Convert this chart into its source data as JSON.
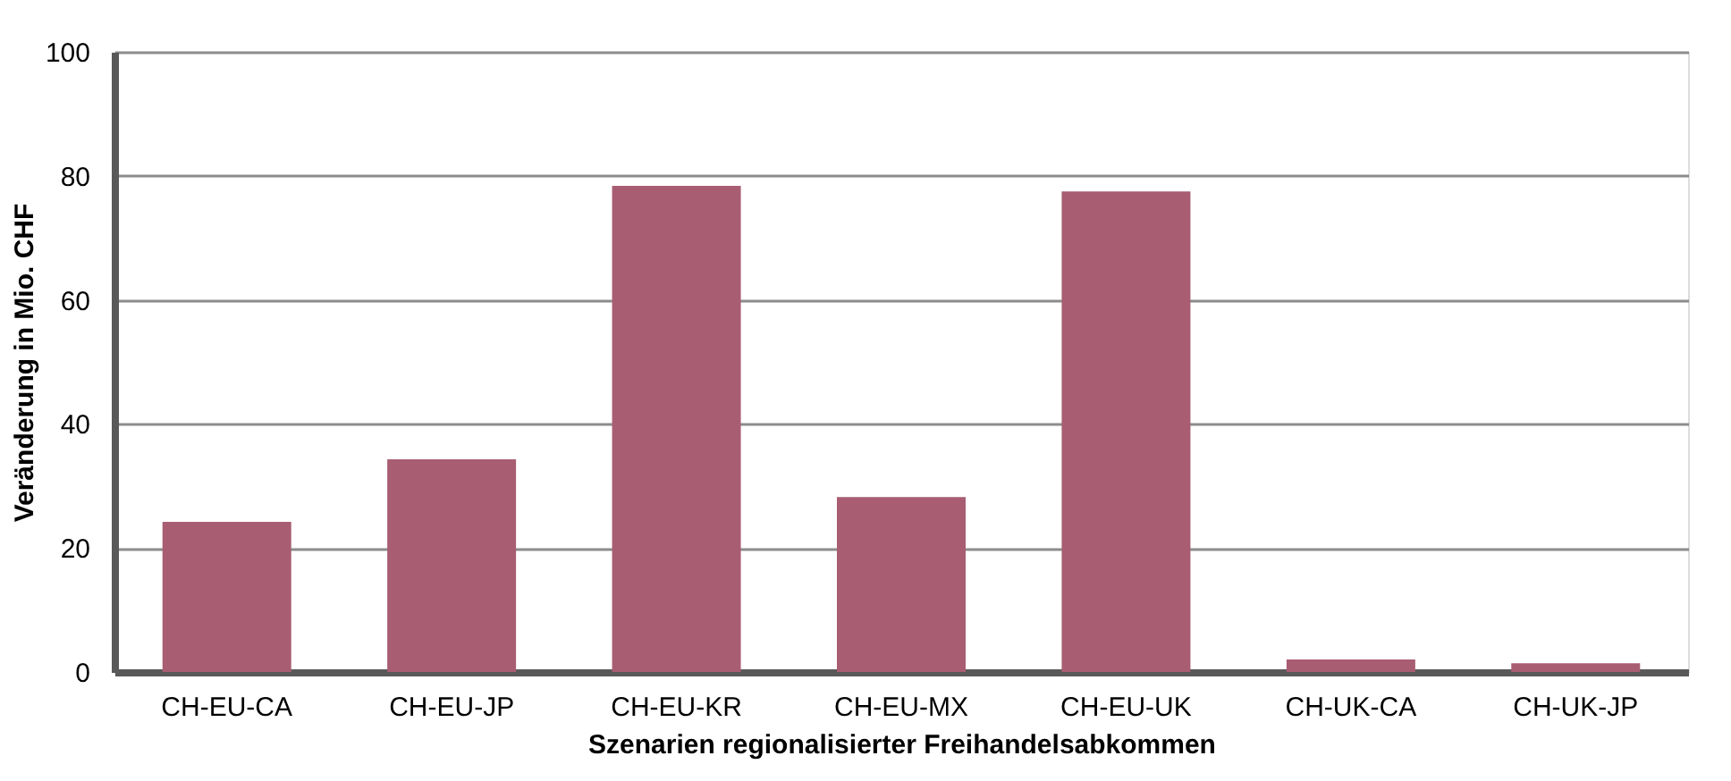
{
  "chart_data": {
    "type": "bar",
    "xlabel": "Szenarien regionalisierter Freihandelsabkommen",
    "ylabel": "Veränderung in Mio. CHF",
    "categories": [
      "CH-EU-CA",
      "CH-EU-JP",
      "CH-EU-KR",
      "CH-EU-MX",
      "CH-EU-UK",
      "CH-UK-CA",
      "CH-UK-JP"
    ],
    "values": [
      24.2,
      34.3,
      78.4,
      28.2,
      77.5,
      2.0,
      1.4
    ],
    "color": "#a85d73",
    "ylim": [
      0,
      100
    ],
    "yticks": [
      0,
      20,
      40,
      60,
      80,
      100
    ],
    "grid": "y"
  }
}
